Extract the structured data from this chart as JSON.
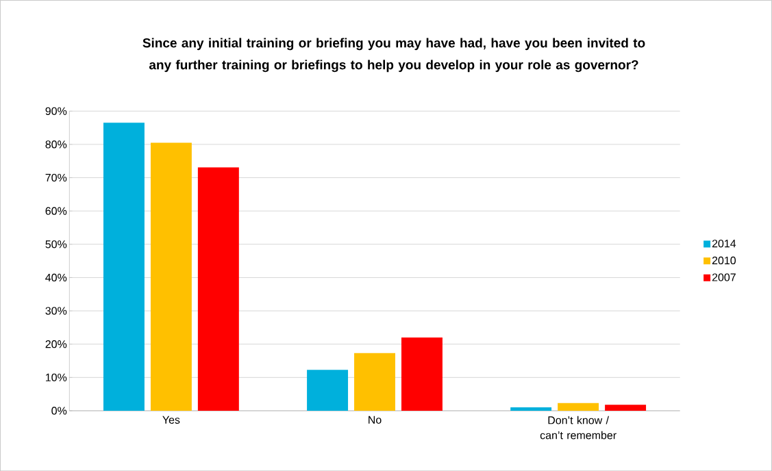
{
  "chart_data": {
    "type": "bar",
    "title": "Since any initial training or briefing you may have had, have you been invited to any further training or briefings to help you develop in your role as governor?",
    "categories": [
      "Yes",
      "No",
      "Don’t know / can’t remember"
    ],
    "series": [
      {
        "name": "2014",
        "color": "#00b0dc",
        "values": [
          86.5,
          12.3,
          1.0
        ]
      },
      {
        "name": "2010",
        "color": "#ffc000",
        "values": [
          80.5,
          17.3,
          2.3
        ]
      },
      {
        "name": "2007",
        "color": "#ff0000",
        "values": [
          73.1,
          22.0,
          1.8
        ]
      }
    ],
    "ylim": [
      0,
      90
    ],
    "yticks": [
      {
        "value": 0,
        "label": "0%"
      },
      {
        "value": 10,
        "label": "10%"
      },
      {
        "value": 20,
        "label": "20%"
      },
      {
        "value": 30,
        "label": "30%"
      },
      {
        "value": 40,
        "label": "40%"
      },
      {
        "value": 50,
        "label": "50%"
      },
      {
        "value": 60,
        "label": "60%"
      },
      {
        "value": 70,
        "label": "70%"
      },
      {
        "value": 80,
        "label": "80%"
      },
      {
        "value": 90,
        "label": "90%"
      }
    ],
    "grid": "y",
    "legend": "right"
  }
}
